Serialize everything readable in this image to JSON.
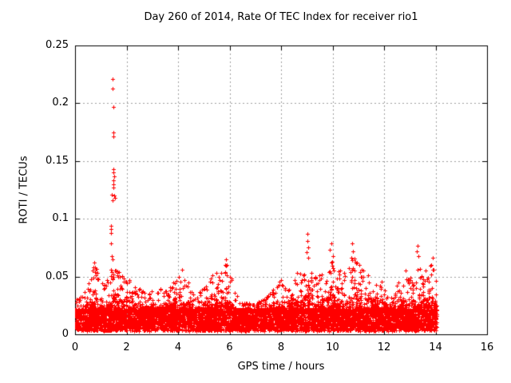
{
  "colors": {
    "background": "#ffffff",
    "marker": "#ff0000",
    "grid": "#a0a0a0",
    "axis": "#000000",
    "text": "#000000"
  },
  "chart_data": {
    "type": "scatter",
    "title": "Day 260 of 2014, Rate Of TEC Index for receiver rio1",
    "xlabel": "GPS time / hours",
    "ylabel": "ROTI / TECUs",
    "xlim": [
      0,
      16
    ],
    "ylim": [
      0,
      0.25
    ],
    "xticks": [
      0,
      2,
      4,
      6,
      8,
      10,
      12,
      14,
      16
    ],
    "xtick_labels": [
      "0",
      "2",
      "4",
      "6",
      "8",
      "10",
      "12",
      "14",
      "16"
    ],
    "yticks": [
      0,
      0.05,
      0.1,
      0.15,
      0.2,
      0.25
    ],
    "ytick_labels": [
      "0",
      "0.05",
      "0.1",
      "0.15",
      "0.2",
      "0.25"
    ],
    "grid": true,
    "legend": "none",
    "marker": "plus",
    "marker_size_px": 5,
    "x_data_range": [
      0,
      14.05
    ],
    "base_band": {
      "y_min": 0.002,
      "y_max": 0.022,
      "n_points": 7000,
      "seed": 20140260
    },
    "envelope_max": [
      [
        0,
        0.03
      ],
      [
        0.3,
        0.033
      ],
      [
        0.55,
        0.048
      ],
      [
        0.75,
        0.062
      ],
      [
        0.95,
        0.052
      ],
      [
        1.15,
        0.042
      ],
      [
        1.45,
        0.06
      ],
      [
        1.75,
        0.055
      ],
      [
        2.0,
        0.05
      ],
      [
        2.3,
        0.046
      ],
      [
        2.6,
        0.038
      ],
      [
        2.9,
        0.036
      ],
      [
        3.2,
        0.044
      ],
      [
        3.5,
        0.038
      ],
      [
        3.8,
        0.046
      ],
      [
        4.1,
        0.056
      ],
      [
        4.4,
        0.046
      ],
      [
        4.7,
        0.034
      ],
      [
        5.0,
        0.042
      ],
      [
        5.35,
        0.052
      ],
      [
        5.7,
        0.058
      ],
      [
        5.95,
        0.062
      ],
      [
        6.2,
        0.036
      ],
      [
        6.5,
        0.028
      ],
      [
        6.9,
        0.026
      ],
      [
        7.3,
        0.03
      ],
      [
        7.7,
        0.042
      ],
      [
        8.0,
        0.048
      ],
      [
        8.3,
        0.044
      ],
      [
        8.6,
        0.052
      ],
      [
        8.9,
        0.054
      ],
      [
        9.05,
        0.068
      ],
      [
        9.25,
        0.048
      ],
      [
        9.5,
        0.055
      ],
      [
        9.75,
        0.05
      ],
      [
        10.0,
        0.068
      ],
      [
        10.25,
        0.058
      ],
      [
        10.5,
        0.054
      ],
      [
        10.8,
        0.068
      ],
      [
        11.05,
        0.062
      ],
      [
        11.35,
        0.052
      ],
      [
        11.65,
        0.048
      ],
      [
        11.95,
        0.046
      ],
      [
        12.25,
        0.032
      ],
      [
        12.55,
        0.046
      ],
      [
        12.85,
        0.054
      ],
      [
        13.1,
        0.048
      ],
      [
        13.35,
        0.062
      ],
      [
        13.6,
        0.056
      ],
      [
        13.9,
        0.062
      ],
      [
        14.05,
        0.05
      ]
    ],
    "outliers": [
      [
        1.47,
        0.221
      ],
      [
        1.47,
        0.213
      ],
      [
        1.48,
        0.197
      ],
      [
        1.5,
        0.175
      ],
      [
        1.49,
        0.171
      ],
      [
        1.5,
        0.143
      ],
      [
        1.48,
        0.14
      ],
      [
        1.51,
        0.137
      ],
      [
        1.49,
        0.133
      ],
      [
        1.5,
        0.13
      ],
      [
        1.48,
        0.127
      ],
      [
        1.44,
        0.121
      ],
      [
        1.52,
        0.12
      ],
      [
        1.56,
        0.118
      ],
      [
        1.47,
        0.116
      ],
      [
        1.4,
        0.094
      ],
      [
        1.41,
        0.091
      ],
      [
        1.39,
        0.088
      ],
      [
        1.38,
        0.079
      ],
      [
        1.43,
        0.068
      ],
      [
        1.46,
        0.065
      ],
      [
        9.02,
        0.087
      ],
      [
        9.03,
        0.081
      ],
      [
        9.05,
        0.075
      ],
      [
        9.0,
        0.071
      ],
      [
        9.04,
        0.066
      ],
      [
        9.95,
        0.079
      ],
      [
        9.9,
        0.073
      ],
      [
        10.0,
        0.068
      ],
      [
        9.97,
        0.063
      ],
      [
        10.75,
        0.079
      ],
      [
        10.8,
        0.072
      ],
      [
        10.72,
        0.066
      ],
      [
        13.3,
        0.077
      ],
      [
        13.28,
        0.072
      ],
      [
        13.33,
        0.068
      ],
      [
        5.85,
        0.065
      ],
      [
        5.9,
        0.06
      ],
      [
        0.73,
        0.062
      ],
      [
        0.7,
        0.058
      ],
      [
        4.15,
        0.056
      ],
      [
        8.62,
        0.053
      ],
      [
        11.2,
        0.055
      ],
      [
        12.85,
        0.055
      ],
      [
        13.9,
        0.066
      ],
      [
        6.2,
        0.036
      ]
    ]
  }
}
